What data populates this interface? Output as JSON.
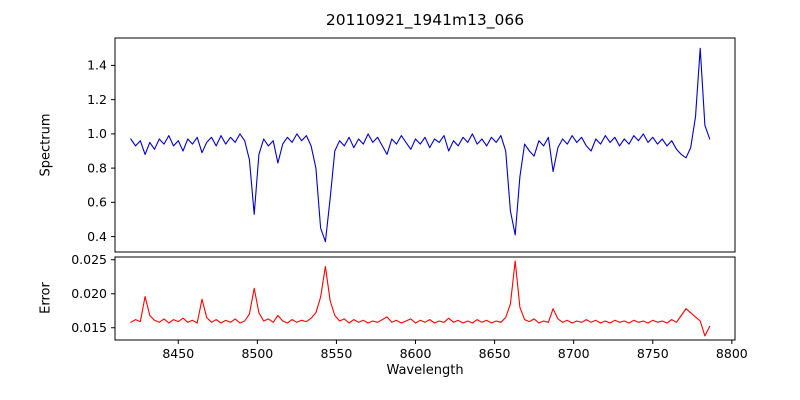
{
  "figure": {
    "background": "#ffffff",
    "axis_color": "#000000",
    "tick_label_color": "#000000"
  },
  "chart_data": {
    "type": "line",
    "title": "20110921_1941m13_066",
    "xlabel": "Wavelength",
    "grid": false,
    "legend": null,
    "xlim": [
      8410,
      8802
    ],
    "x_tick_values": [
      8450,
      8500,
      8550,
      8600,
      8650,
      8700,
      8750,
      8800
    ],
    "x_tick_labels": [
      "8450",
      "8500",
      "8550",
      "8600",
      "8650",
      "8700",
      "8750",
      "8800"
    ],
    "x": [
      8420,
      8423,
      8426,
      8429,
      8432,
      8435,
      8438,
      8441,
      8444,
      8447,
      8450,
      8453,
      8456,
      8459,
      8462,
      8465,
      8468,
      8471,
      8474,
      8477,
      8480,
      8483,
      8486,
      8489,
      8492,
      8495,
      8498,
      8501,
      8504,
      8507,
      8510,
      8513,
      8516,
      8519,
      8522,
      8525,
      8528,
      8531,
      8534,
      8537,
      8540,
      8543,
      8546,
      8549,
      8552,
      8555,
      8558,
      8561,
      8564,
      8567,
      8570,
      8573,
      8576,
      8579,
      8582,
      8585,
      8588,
      8591,
      8594,
      8597,
      8600,
      8603,
      8606,
      8609,
      8612,
      8615,
      8618,
      8621,
      8624,
      8627,
      8630,
      8633,
      8636,
      8639,
      8642,
      8645,
      8648,
      8651,
      8654,
      8657,
      8660,
      8663,
      8666,
      8669,
      8672,
      8675,
      8678,
      8681,
      8684,
      8687,
      8690,
      8693,
      8696,
      8699,
      8702,
      8705,
      8708,
      8711,
      8714,
      8717,
      8720,
      8723,
      8726,
      8729,
      8732,
      8735,
      8738,
      8741,
      8744,
      8747,
      8750,
      8753,
      8756,
      8759,
      8762,
      8765,
      8768,
      8771,
      8774,
      8777,
      8780,
      8783,
      8786
    ],
    "subplots": [
      {
        "name": "spectrum",
        "ylabel": "Spectrum",
        "ylim": [
          0.31,
          1.56
        ],
        "y_tick_values": [
          0.4,
          0.6,
          0.8,
          1.0,
          1.2,
          1.4
        ],
        "y_tick_labels": [
          "0.4",
          "0.6",
          "0.8",
          "1.0",
          "1.2",
          "1.4"
        ],
        "color": "#0000cd",
        "values": [
          0.97,
          0.93,
          0.96,
          0.88,
          0.95,
          0.91,
          0.97,
          0.94,
          0.99,
          0.93,
          0.96,
          0.9,
          0.97,
          0.94,
          0.98,
          0.89,
          0.95,
          0.98,
          0.93,
          0.99,
          0.94,
          0.98,
          0.95,
          1.0,
          0.96,
          0.85,
          0.53,
          0.88,
          0.97,
          0.93,
          0.96,
          0.83,
          0.94,
          0.98,
          0.95,
          1.0,
          0.96,
          0.99,
          0.93,
          0.8,
          0.45,
          0.37,
          0.62,
          0.9,
          0.96,
          0.93,
          0.98,
          0.92,
          0.97,
          0.94,
          1.0,
          0.95,
          0.98,
          0.93,
          0.88,
          0.97,
          0.94,
          0.99,
          0.95,
          0.91,
          0.97,
          0.94,
          0.98,
          0.92,
          0.97,
          0.95,
          0.99,
          0.9,
          0.96,
          0.93,
          0.98,
          0.95,
          1.0,
          0.94,
          0.97,
          0.93,
          0.98,
          0.95,
          0.99,
          0.9,
          0.55,
          0.41,
          0.75,
          0.94,
          0.9,
          0.87,
          0.96,
          0.93,
          0.98,
          0.78,
          0.92,
          0.97,
          0.94,
          0.99,
          0.95,
          0.98,
          0.93,
          0.9,
          0.97,
          0.94,
          0.99,
          0.95,
          0.98,
          0.93,
          0.97,
          0.94,
          0.99,
          0.96,
          1.0,
          0.95,
          0.98,
          0.94,
          0.97,
          0.93,
          0.96,
          0.91,
          0.88,
          0.86,
          0.92,
          1.1,
          1.5,
          1.05,
          0.97
        ]
      },
      {
        "name": "error",
        "ylabel": "Error",
        "ylim": [
          0.0132,
          0.0254
        ],
        "y_tick_values": [
          0.015,
          0.02,
          0.025
        ],
        "y_tick_labels": [
          "0.015",
          "0.020",
          "0.025"
        ],
        "color": "#ff0000",
        "values": [
          0.0158,
          0.0162,
          0.0159,
          0.0196,
          0.0168,
          0.0161,
          0.0158,
          0.0163,
          0.0157,
          0.0162,
          0.0159,
          0.0164,
          0.0158,
          0.0161,
          0.0157,
          0.0192,
          0.0165,
          0.0158,
          0.0162,
          0.0157,
          0.0161,
          0.0158,
          0.0163,
          0.0157,
          0.016,
          0.017,
          0.0208,
          0.0172,
          0.016,
          0.0163,
          0.0158,
          0.0168,
          0.016,
          0.0157,
          0.0162,
          0.0158,
          0.0161,
          0.0159,
          0.0164,
          0.0172,
          0.0195,
          0.024,
          0.019,
          0.0168,
          0.016,
          0.0163,
          0.0157,
          0.0162,
          0.0158,
          0.0161,
          0.0157,
          0.016,
          0.0158,
          0.0162,
          0.0166,
          0.0158,
          0.0161,
          0.0157,
          0.016,
          0.0163,
          0.0157,
          0.0161,
          0.0158,
          0.0162,
          0.0157,
          0.016,
          0.0158,
          0.0164,
          0.0158,
          0.0161,
          0.0157,
          0.016,
          0.0157,
          0.0162,
          0.0158,
          0.0161,
          0.0157,
          0.016,
          0.0158,
          0.0165,
          0.0185,
          0.0248,
          0.018,
          0.0162,
          0.0159,
          0.0163,
          0.0157,
          0.016,
          0.0158,
          0.0178,
          0.0163,
          0.0158,
          0.0161,
          0.0157,
          0.016,
          0.0158,
          0.0162,
          0.0158,
          0.0161,
          0.0157,
          0.016,
          0.0157,
          0.0161,
          0.0158,
          0.016,
          0.0157,
          0.0161,
          0.0158,
          0.016,
          0.0157,
          0.0161,
          0.0158,
          0.016,
          0.0157,
          0.0162,
          0.0158,
          0.0168,
          0.0178,
          0.0172,
          0.0166,
          0.016,
          0.0138,
          0.0152
        ]
      }
    ]
  }
}
